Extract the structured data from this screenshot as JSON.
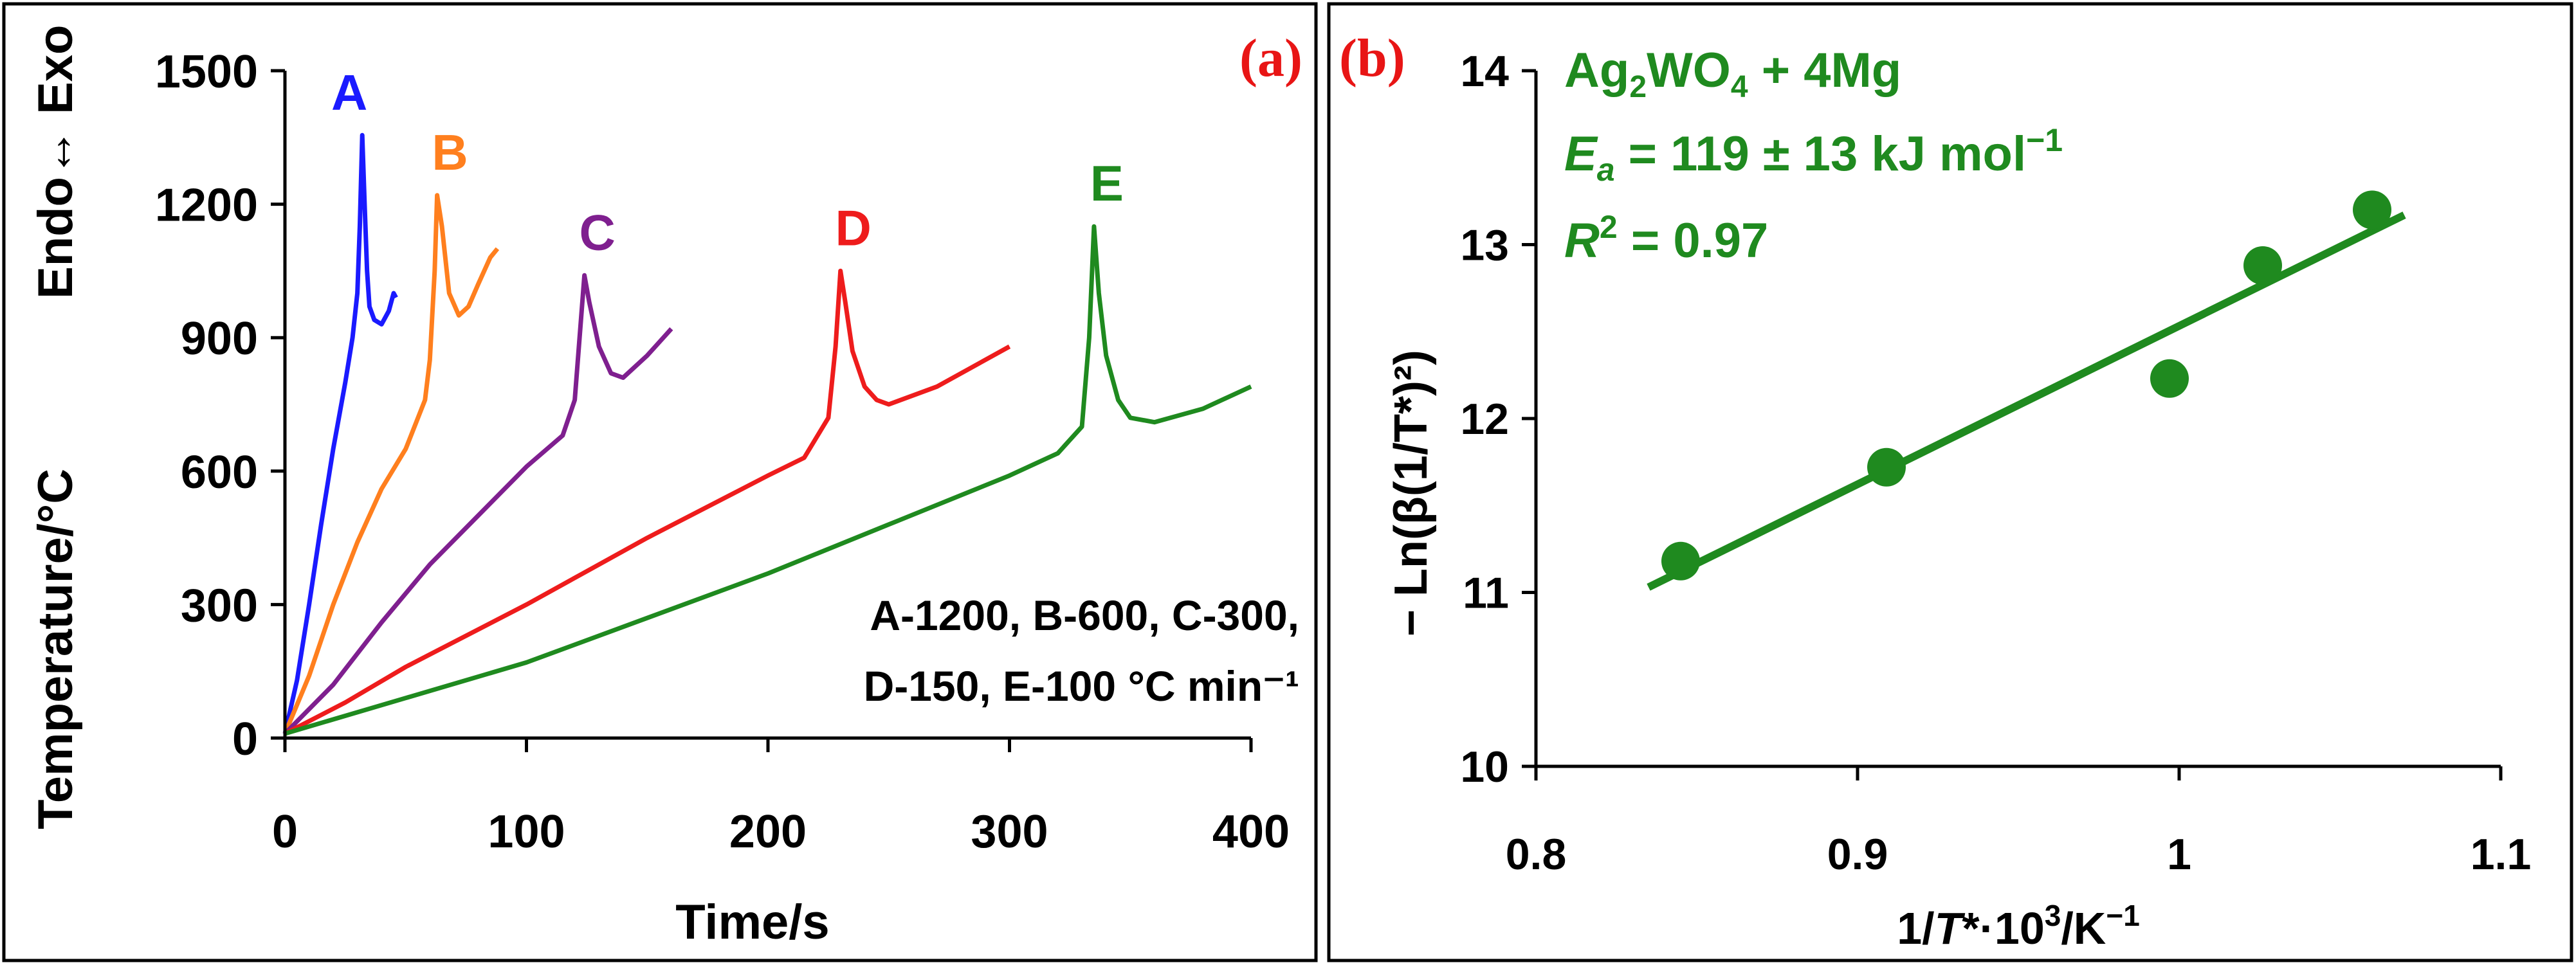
{
  "panels": [
    {
      "label": "(a)",
      "chart_data": {
        "type": "line",
        "xlabel": "Time/s",
        "ylabel": "Temperature/°C",
        "ylabel_top": "Endo↔ Exo",
        "xlim": [
          0,
          400
        ],
        "ylim": [
          0,
          1500
        ],
        "xticks": [
          "0",
          "100",
          "200",
          "300",
          "400"
        ],
        "yticks": [
          "0",
          "300",
          "600",
          "900",
          "1200",
          "1500"
        ],
        "annotation_line1": "A-1200, B-600, C-300,",
        "annotation_line2": "D-150, E-100 °C min⁻¹",
        "series": [
          {
            "name": "A",
            "color": "#1a1aff",
            "x": [
              0,
              5,
              10,
              15,
              20,
              25,
              28,
              30,
              31,
              32,
              33,
              34,
              35,
              37,
              40,
              43,
              45,
              46
            ],
            "y": [
              10,
              130,
              300,
              480,
              650,
              800,
              900,
              1000,
              1150,
              1355,
              1200,
              1050,
              970,
              940,
              930,
              960,
              1000,
              990
            ]
          },
          {
            "name": "B",
            "color": "#ff7f1e",
            "x": [
              0,
              10,
              20,
              30,
              40,
              50,
              58,
              60,
              62,
              63,
              65,
              68,
              72,
              76,
              80,
              85,
              88
            ],
            "y": [
              10,
              140,
              300,
              440,
              560,
              650,
              760,
              850,
              1050,
              1220,
              1150,
              1000,
              950,
              970,
              1020,
              1080,
              1100
            ]
          },
          {
            "name": "C",
            "color": "#7f1f8f",
            "x": [
              0,
              20,
              40,
              60,
              80,
              100,
              115,
              120,
              122,
              124,
              126,
              130,
              135,
              140,
              150,
              160
            ],
            "y": [
              10,
              120,
              260,
              390,
              500,
              610,
              680,
              760,
              900,
              1040,
              980,
              880,
              820,
              810,
              860,
              920
            ]
          },
          {
            "name": "D",
            "color": "#ee1c1c",
            "x": [
              0,
              25,
              50,
              100,
              150,
              200,
              215,
              225,
              228,
              230,
              232,
              235,
              240,
              245,
              250,
              270,
              300
            ],
            "y": [
              10,
              80,
              160,
              300,
              450,
              590,
              630,
              720,
              880,
              1050,
              980,
              870,
              790,
              760,
              750,
              790,
              880
            ]
          },
          {
            "name": "E",
            "color": "#1f8a1f",
            "x": [
              0,
              50,
              100,
              150,
              200,
              250,
              300,
              320,
              330,
              333,
              335,
              337,
              340,
              345,
              350,
              360,
              380,
              400
            ],
            "y": [
              10,
              90,
              170,
              270,
              370,
              480,
              590,
              640,
              700,
              900,
              1150,
              1000,
              860,
              760,
              720,
              710,
              740,
              790
            ]
          }
        ]
      }
    },
    {
      "label": "(b)",
      "chart_data": {
        "type": "scatter",
        "xlabel_pre": "1/",
        "xlabel_T": "T",
        "xlabel_mid": "*·10",
        "xlabel_exp": "3",
        "xlabel_post": "/K",
        "xlabel_exp2": "−1",
        "ylabel": "− Ln(β(1/T*)²)",
        "xlim": [
          0.8,
          1.1
        ],
        "ylim": [
          10,
          14
        ],
        "xticks": [
          "0.8",
          "0.9",
          "1",
          "1.1"
        ],
        "yticks": [
          "10",
          "11",
          "12",
          "13",
          "14"
        ],
        "color": "#1f8a1f",
        "points": {
          "x": [
            0.845,
            0.909,
            0.997,
            1.026,
            1.06
          ],
          "y": [
            11.18,
            11.72,
            12.23,
            12.88,
            13.2
          ]
        },
        "fit_line": {
          "x": [
            0.835,
            1.07
          ],
          "y": [
            11.03,
            13.17
          ]
        },
        "legend": {
          "formula_pre": "Ag",
          "formula_sub": "2",
          "formula_mid": "WO",
          "formula_sub2": "4",
          "formula_post": " + 4Mg",
          "ea_symbol": "E",
          "ea_sub": "a",
          "ea_text": " = 119 ± 13 kJ mol",
          "ea_exp": "−1",
          "r2_symbol": "R",
          "r2_exp": "2",
          "r2_text": " = 0.97"
        }
      }
    }
  ]
}
